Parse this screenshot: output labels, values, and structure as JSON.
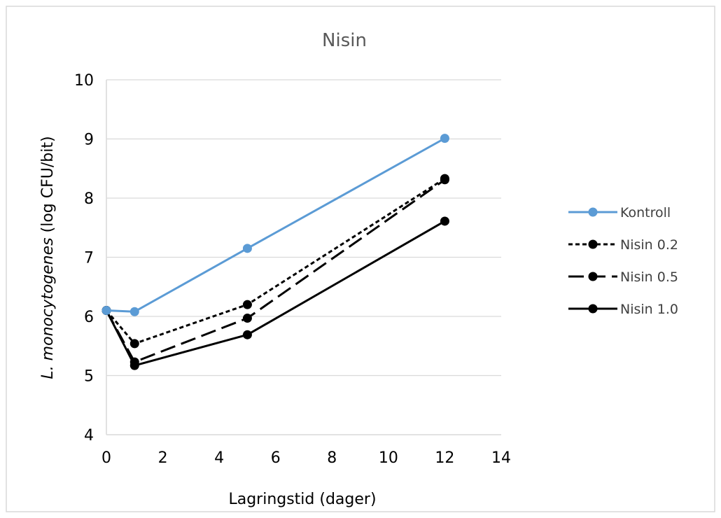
{
  "chart_data": {
    "type": "line",
    "title": "Nisin",
    "xlabel": "Lagringstid (dager)",
    "ylabel_italic": "L. monocytogenes",
    "ylabel_rest": "(log CFU/bit)",
    "xlim": [
      0,
      14
    ],
    "ylim": [
      4,
      10
    ],
    "xticks": [
      0,
      2,
      4,
      6,
      8,
      10,
      12,
      14
    ],
    "yticks": [
      4,
      5,
      6,
      7,
      8,
      9,
      10
    ],
    "grid": "horizontal",
    "legend_position": "right",
    "series": [
      {
        "name": "Kontroll",
        "x": [
          0,
          1,
          5,
          12
        ],
        "y": [
          6.1,
          6.08,
          7.15,
          9.01
        ],
        "color": "#5B9BD5",
        "dash": "solid"
      },
      {
        "name": "Nisin 0.2",
        "x": [
          0,
          1,
          5,
          12
        ],
        "y": [
          6.1,
          5.54,
          6.2,
          8.33
        ],
        "color": "#000000",
        "dash": "dotted"
      },
      {
        "name": "Nisin 0.5",
        "x": [
          0,
          1,
          5,
          12
        ],
        "y": [
          6.1,
          5.23,
          5.97,
          8.31
        ],
        "color": "#000000",
        "dash": "dashed"
      },
      {
        "name": "Nisin 1.0",
        "x": [
          0,
          1,
          5,
          12
        ],
        "y": [
          6.1,
          5.17,
          5.69,
          7.61
        ],
        "color": "#000000",
        "dash": "solid"
      }
    ]
  }
}
